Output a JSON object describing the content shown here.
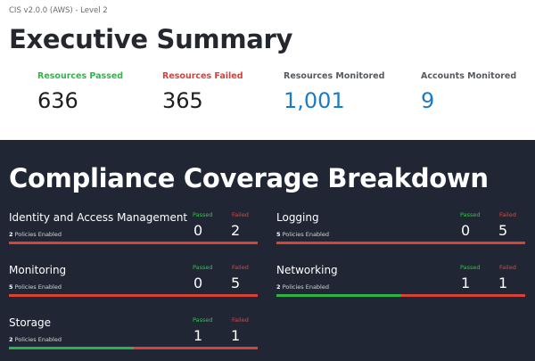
{
  "header": {
    "subtitle": "CIS v2.0.0 (AWS) - Level 2",
    "title": "Executive Summary"
  },
  "summary": [
    {
      "label": "Resources Passed",
      "value": "636",
      "label_color": "#2db84a",
      "value_color": "#1e1e1e"
    },
    {
      "label": "Resources Failed",
      "value": "365",
      "label_color": "#d9403a",
      "value_color": "#1e1e1e"
    },
    {
      "label": "Resources Monitored",
      "value": "1,001",
      "label_color": "#555a63",
      "value_color": "#1f7ac4"
    },
    {
      "label": "Accounts Monitored",
      "value": "9",
      "label_color": "#555a63",
      "value_color": "#1f7ac4"
    }
  ],
  "coverage": {
    "title": "Compliance Coverage Breakdown",
    "passed_label": "Passed",
    "failed_label": "Failed",
    "policies_suffix": "Policies Enabled",
    "colors": {
      "passed": "#2bb34a",
      "failed": "#d64338",
      "background": "#212634"
    },
    "items": [
      {
        "name": "Identity and Access Management",
        "policies": "2",
        "passed": "0",
        "failed": "2",
        "pass_fraction": 0.0
      },
      {
        "name": "Logging",
        "policies": "5",
        "passed": "0",
        "failed": "5",
        "pass_fraction": 0.0
      },
      {
        "name": "Monitoring",
        "policies": "5",
        "passed": "0",
        "failed": "5",
        "pass_fraction": 0.0
      },
      {
        "name": "Networking",
        "policies": "2",
        "passed": "1",
        "failed": "1",
        "pass_fraction": 0.5
      },
      {
        "name": "Storage",
        "policies": "2",
        "passed": "1",
        "failed": "1",
        "pass_fraction": 0.5
      }
    ]
  }
}
